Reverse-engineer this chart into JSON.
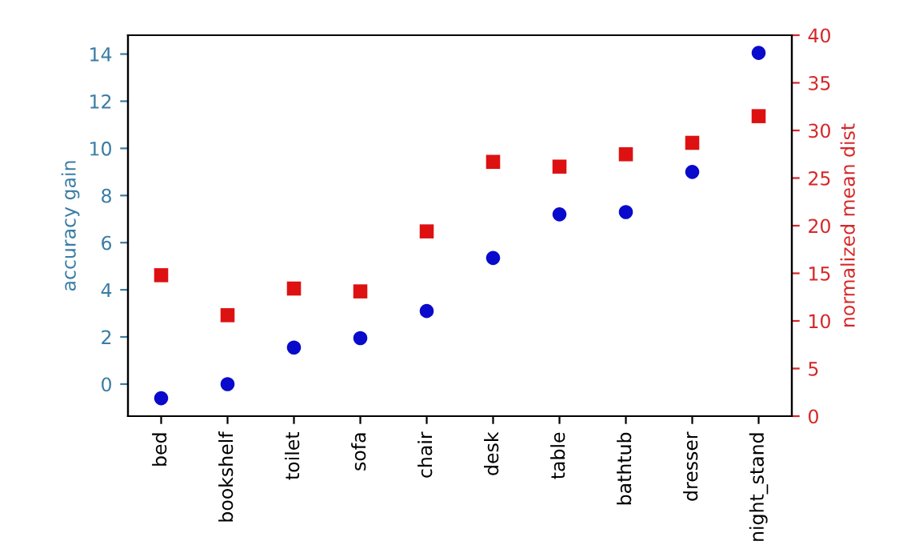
{
  "chart_data": {
    "type": "scatter",
    "ylabel": "accuracy gain",
    "y2label": "normalized mean dist",
    "categories": [
      "bed",
      "bookshelf",
      "toilet",
      "sofa",
      "chair",
      "desk",
      "table",
      "bathtub",
      "dresser",
      "night_stand"
    ],
    "series": [
      {
        "color": "#0a0acc",
        "marker": "circle",
        "values": [
          -0.6,
          0,
          1.55,
          1.95,
          3.1,
          5.35,
          7.2,
          7.3,
          9.0,
          14.05
        ]
      },
      {
        "color": "#dd1111",
        "marker": "square",
        "axis": "y2",
        "values": [
          14.8,
          10.6,
          13.4,
          13.1,
          19.4,
          26.7,
          26.2,
          27.5,
          28.7,
          31.5
        ]
      }
    ],
    "ylim": [
      -1.36,
      14.8
    ],
    "yticks": [
      0,
      2,
      4,
      6,
      8,
      10,
      12,
      14
    ],
    "y2lim": [
      0,
      40
    ],
    "y2ticks": [
      0,
      5,
      10,
      15,
      20,
      25,
      30,
      35,
      40
    ],
    "grid": false,
    "legend": false
  }
}
